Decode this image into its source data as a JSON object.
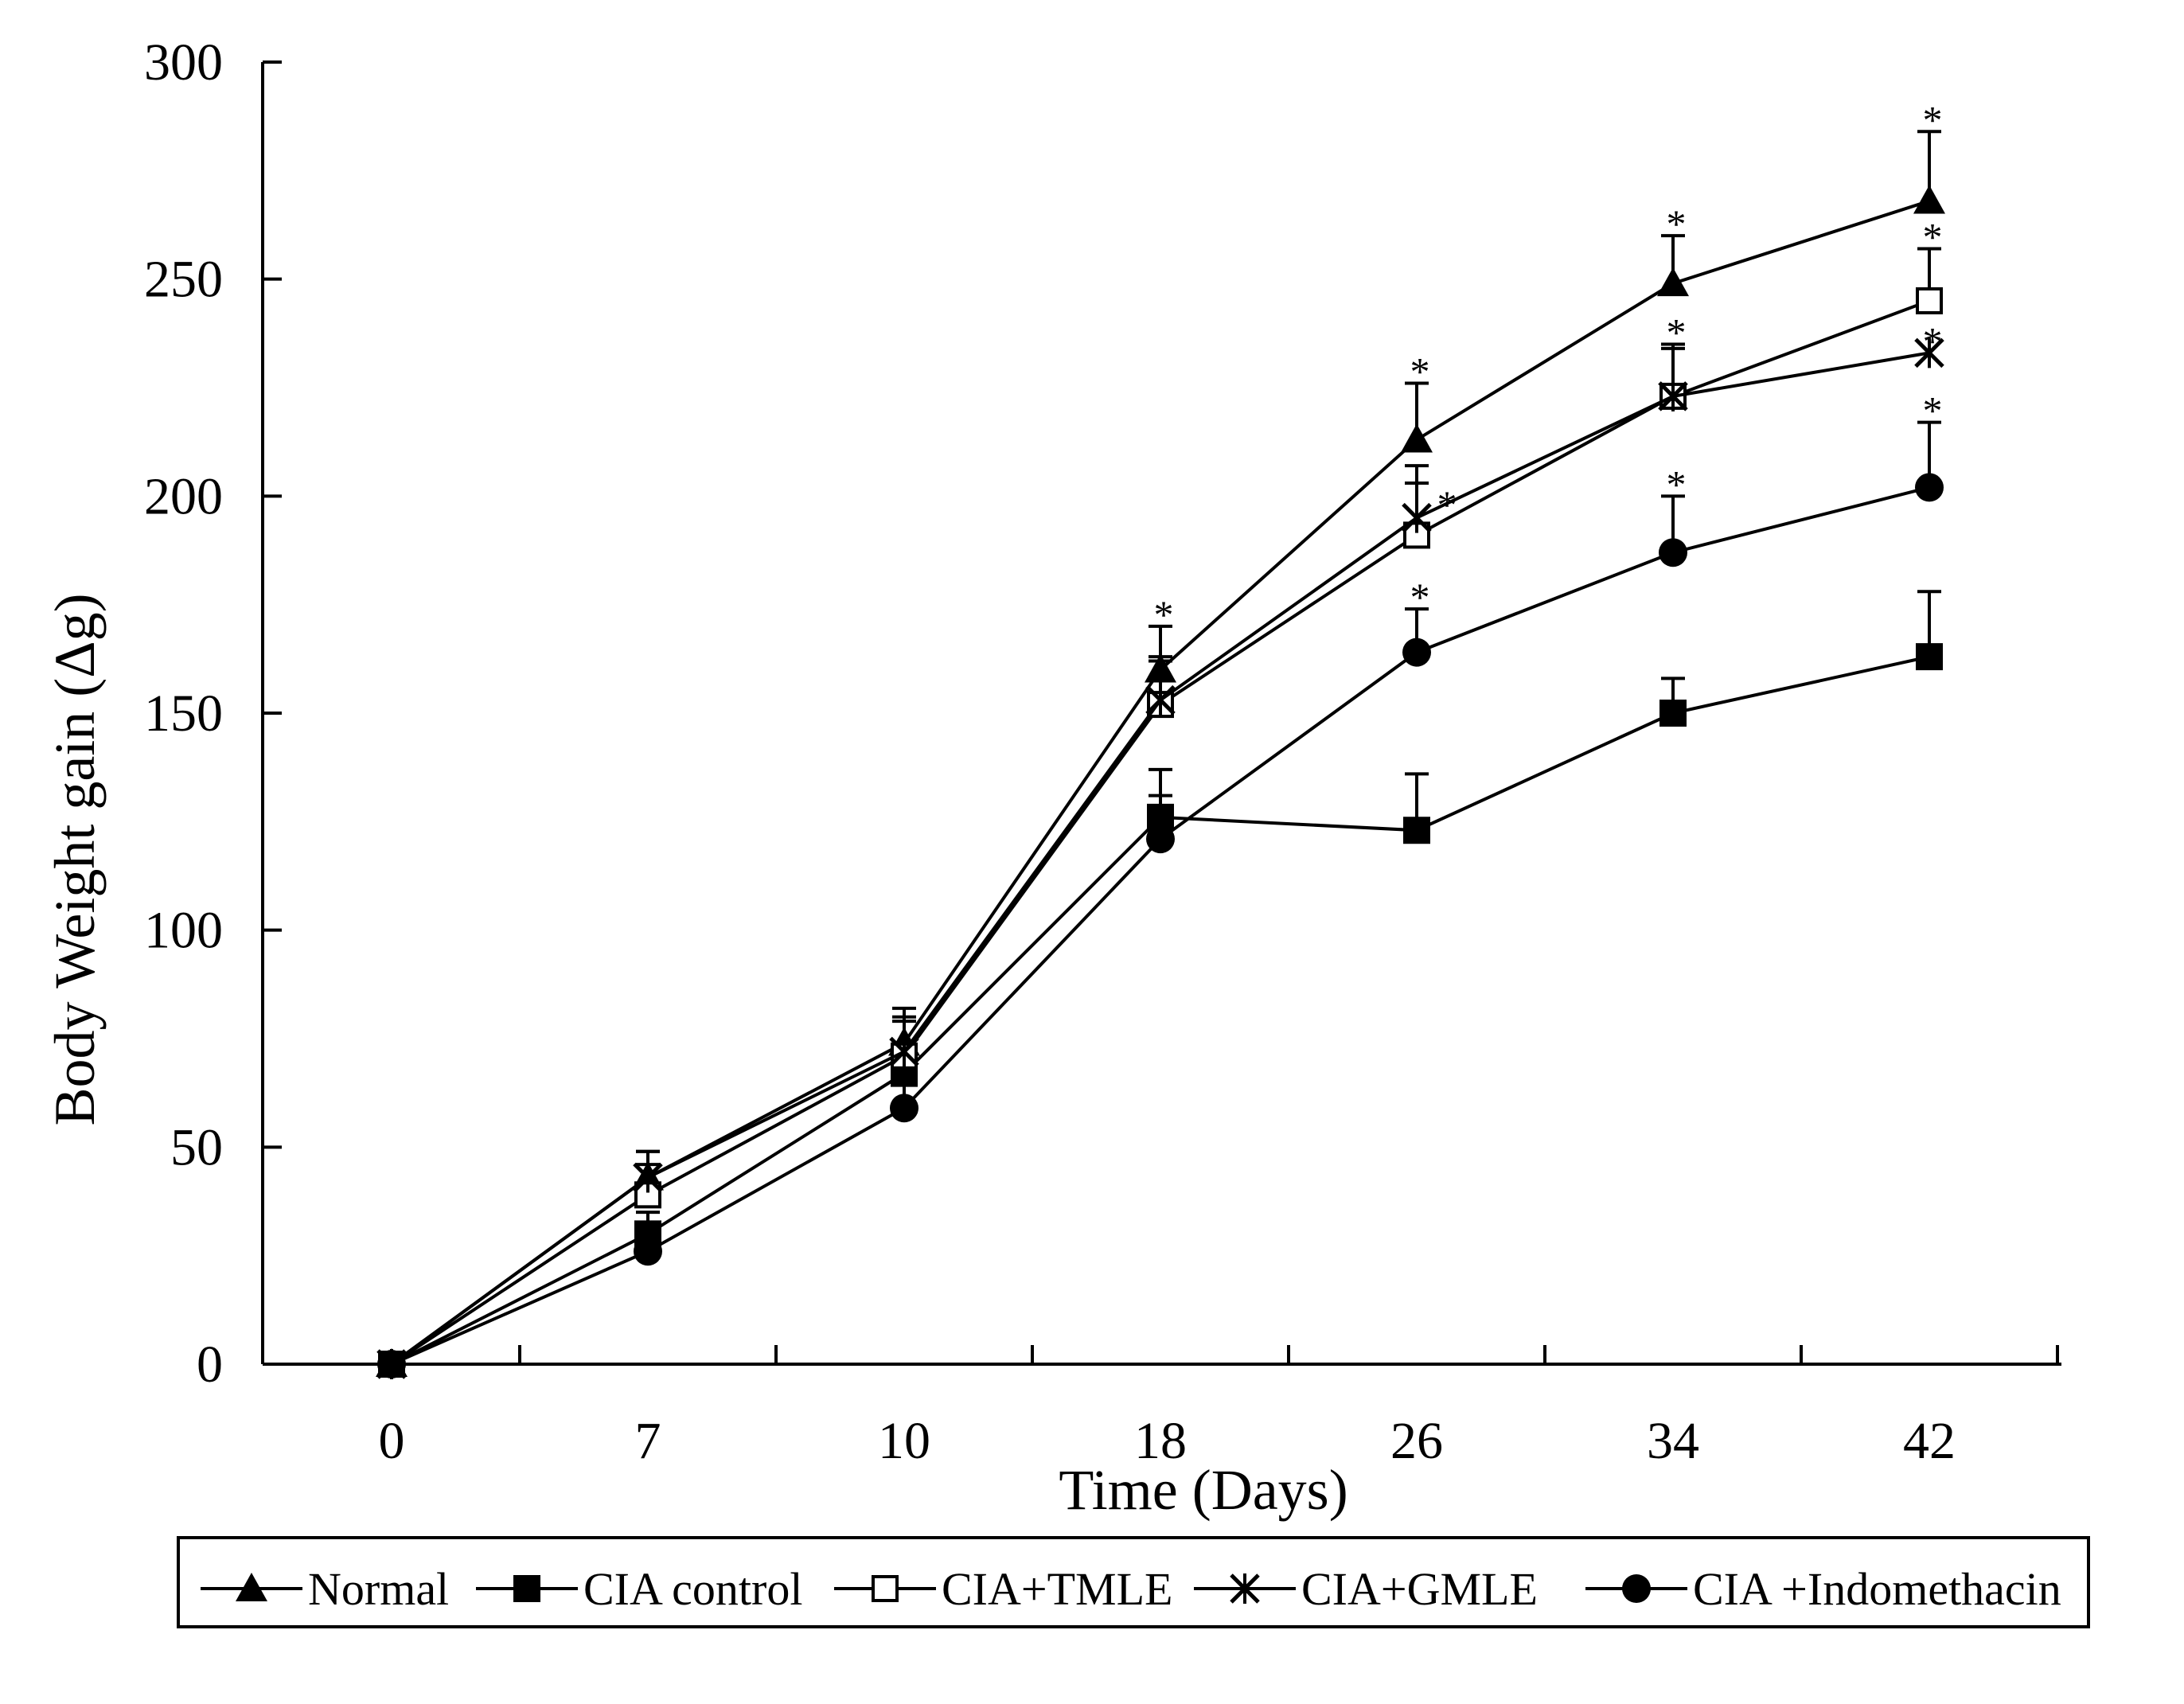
{
  "chart_data": {
    "type": "line",
    "title": "",
    "xlabel": "Time (Days)",
    "ylabel": "Body Weight gain (Δg)",
    "categories": [
      "0",
      "7",
      "10",
      "18",
      "26",
      "34",
      "42"
    ],
    "ylim": [
      0,
      300
    ],
    "yticks": [
      "0",
      "50",
      "100",
      "150",
      "200",
      "250",
      "300"
    ],
    "legend_position": "bottom",
    "significance_marker": "*",
    "series": [
      {
        "name": "Normal",
        "marker": "filled-triangle",
        "values": [
          0,
          43,
          74,
          160,
          213,
          249,
          268
        ],
        "errors": [
          0,
          6,
          8,
          10,
          13,
          11,
          16
        ],
        "significant": [
          false,
          false,
          false,
          true,
          true,
          true,
          true
        ]
      },
      {
        "name": "CIA control",
        "marker": "filled-square",
        "values": [
          0,
          30,
          67,
          126,
          123,
          150,
          163
        ],
        "errors": [
          0,
          5,
          7,
          11,
          13,
          8,
          15
        ],
        "significant": [
          false,
          false,
          false,
          false,
          false,
          false,
          false
        ]
      },
      {
        "name": "CIA+TMLE",
        "marker": "open-square",
        "values": [
          0,
          39,
          71,
          152,
          191,
          223,
          245
        ],
        "errors": [
          0,
          7,
          8,
          10,
          12,
          12,
          12
        ],
        "significant": [
          false,
          false,
          false,
          false,
          false,
          true,
          true
        ]
      },
      {
        "name": "CIA+GMLE",
        "marker": "x-cross",
        "values": [
          0,
          43,
          72,
          153,
          195,
          223,
          233
        ],
        "errors": [
          0,
          6,
          8,
          10,
          12,
          11,
          0
        ],
        "significant": [
          false,
          false,
          false,
          false,
          true,
          false,
          true
        ]
      },
      {
        "name": "CIA +Indomethacin",
        "marker": "filled-circle",
        "values": [
          0,
          26,
          59,
          121,
          164,
          187,
          202
        ],
        "errors": [
          0,
          4,
          7,
          10,
          10,
          13,
          15
        ],
        "significant": [
          false,
          false,
          false,
          false,
          true,
          true,
          true
        ]
      }
    ]
  },
  "legend": {
    "items": [
      "Normal",
      "CIA control",
      "CIA+TMLE",
      "CIA+GMLE",
      "CIA +Indomethacin"
    ]
  },
  "colors": {
    "ink": "#000000",
    "background": "#ffffff"
  }
}
